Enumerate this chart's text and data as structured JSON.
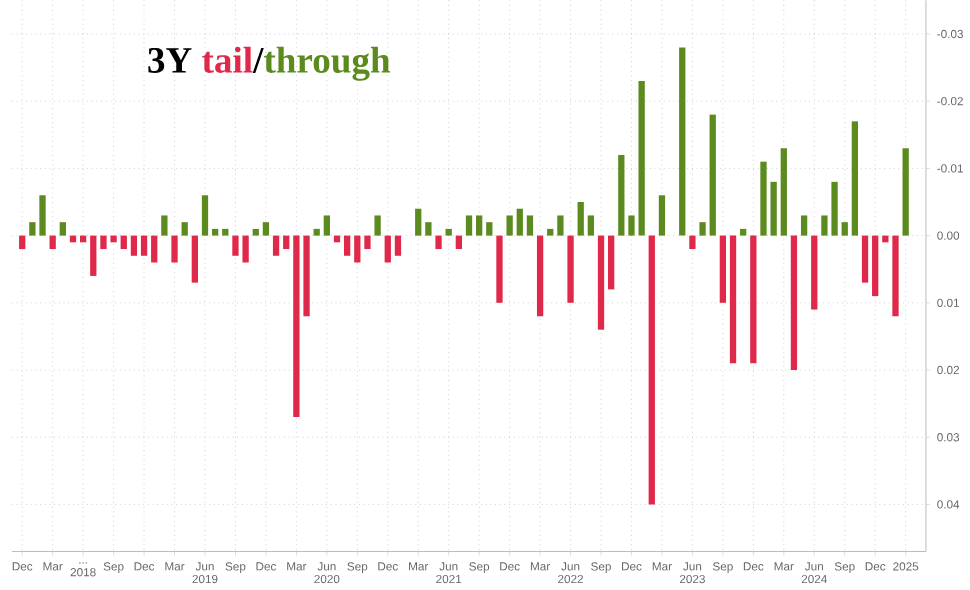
{
  "chart_data": {
    "type": "bar",
    "title": "3Y",
    "x": [
      "2017-12",
      "2018-01",
      "2018-02",
      "2018-03",
      "2018-04",
      "2018-05",
      "2018-06",
      "2018-07",
      "2018-08",
      "2018-09",
      "2018-10",
      "2018-11",
      "2018-12",
      "2019-01",
      "2019-02",
      "2019-03",
      "2019-04",
      "2019-05",
      "2019-06",
      "2019-07",
      "2019-08",
      "2019-09",
      "2019-10",
      "2019-11",
      "2019-12",
      "2020-01",
      "2020-02",
      "2020-03",
      "2020-04",
      "2020-05",
      "2020-06",
      "2020-07",
      "2020-08",
      "2020-09",
      "2020-10",
      "2020-11",
      "2020-12",
      "2021-01",
      "2021-02",
      "2021-03",
      "2021-04",
      "2021-05",
      "2021-06",
      "2021-07",
      "2021-08",
      "2021-09",
      "2021-10",
      "2021-11",
      "2021-12",
      "2022-01",
      "2022-02",
      "2022-03",
      "2022-04",
      "2022-05",
      "2022-06",
      "2022-07",
      "2022-08",
      "2022-09",
      "2022-10",
      "2022-11",
      "2022-12",
      "2023-01",
      "2023-02",
      "2023-03",
      "2023-04",
      "2023-05",
      "2023-06",
      "2023-07",
      "2023-08",
      "2023-09",
      "2023-10",
      "2023-11",
      "2023-12",
      "2024-01",
      "2024-02",
      "2024-03",
      "2024-04",
      "2024-05",
      "2024-06",
      "2024-07",
      "2024-08",
      "2024-09",
      "2024-10",
      "2024-11",
      "2024-12",
      "2025-01",
      "2025-02",
      "2025-03"
    ],
    "series": [
      {
        "name": "tail",
        "color": "#e0284a",
        "values": [
          0.002,
          null,
          null,
          0.002,
          null,
          0.001,
          0.001,
          0.006,
          0.002,
          0.001,
          0.002,
          0.003,
          0.003,
          0.004,
          null,
          0.004,
          null,
          0.007,
          null,
          null,
          null,
          0.003,
          0.004,
          null,
          null,
          0.003,
          0.002,
          0.027,
          0.012,
          null,
          null,
          0.001,
          0.003,
          0.004,
          0.002,
          null,
          0.004,
          0.003,
          null,
          null,
          null,
          0.002,
          null,
          0.002,
          null,
          null,
          null,
          0.01,
          null,
          null,
          null,
          0.012,
          null,
          null,
          0.01,
          null,
          null,
          0.014,
          0.008,
          null,
          null,
          null,
          0.04,
          null,
          null,
          null,
          0.002,
          null,
          null,
          0.01,
          0.019,
          null,
          0.019,
          null,
          null,
          null,
          0.02,
          null,
          0.011,
          null,
          null,
          null,
          null,
          0.007,
          0.009,
          0.001,
          0.012,
          null
        ]
      },
      {
        "name": "through",
        "color": "#5b8a1f",
        "values": [
          null,
          -0.002,
          -0.006,
          null,
          -0.002,
          null,
          null,
          null,
          null,
          null,
          null,
          null,
          null,
          null,
          -0.003,
          null,
          -0.002,
          null,
          -0.006,
          -0.001,
          -0.001,
          null,
          null,
          -0.001,
          -0.002,
          null,
          null,
          null,
          null,
          -0.001,
          -0.003,
          null,
          null,
          null,
          null,
          -0.003,
          null,
          null,
          null,
          -0.004,
          -0.002,
          null,
          -0.001,
          null,
          -0.003,
          -0.003,
          -0.002,
          null,
          -0.003,
          -0.004,
          -0.003,
          null,
          -0.001,
          -0.003,
          null,
          -0.005,
          -0.003,
          null,
          null,
          -0.012,
          -0.003,
          -0.023,
          null,
          -0.006,
          null,
          -0.028,
          null,
          -0.002,
          -0.018,
          null,
          null,
          -0.001,
          null,
          -0.011,
          -0.008,
          -0.013,
          null,
          -0.003,
          null,
          -0.003,
          -0.008,
          -0.002,
          -0.017,
          null,
          null,
          null,
          null,
          -0.013
        ]
      }
    ],
    "xlim": [
      "2017-11",
      "2025-05"
    ],
    "xticks": [
      {
        "value": "2017-12",
        "label": "Dec"
      },
      {
        "value": "2018-03",
        "label": "Mar"
      },
      {
        "value": "2018-06",
        "label": "... 2018"
      },
      {
        "value": "2018-09",
        "label": "Sep"
      },
      {
        "value": "2018-12",
        "label": "Dec"
      },
      {
        "value": "2019-03",
        "label": "Mar"
      },
      {
        "value": "2019-06",
        "label": "Jun 2019"
      },
      {
        "value": "2019-09",
        "label": "Sep"
      },
      {
        "value": "2019-12",
        "label": "Dec"
      },
      {
        "value": "2020-03",
        "label": "Mar"
      },
      {
        "value": "2020-06",
        "label": "Jun 2020"
      },
      {
        "value": "2020-09",
        "label": "Sep"
      },
      {
        "value": "2020-12",
        "label": "Dec"
      },
      {
        "value": "2021-03",
        "label": "Mar"
      },
      {
        "value": "2021-06",
        "label": "Jun 2021"
      },
      {
        "value": "2021-09",
        "label": "Sep"
      },
      {
        "value": "2021-12",
        "label": "Dec"
      },
      {
        "value": "2022-03",
        "label": "Mar"
      },
      {
        "value": "2022-06",
        "label": "Jun 2022"
      },
      {
        "value": "2022-09",
        "label": "Sep"
      },
      {
        "value": "2022-12",
        "label": "Dec"
      },
      {
        "value": "2023-03",
        "label": "Mar"
      },
      {
        "value": "2023-06",
        "label": "Jun 2023"
      },
      {
        "value": "2023-09",
        "label": "Sep"
      },
      {
        "value": "2023-12",
        "label": "Dec"
      },
      {
        "value": "2024-03",
        "label": "Mar"
      },
      {
        "value": "2024-06",
        "label": "Jun 2024"
      },
      {
        "value": "2024-09",
        "label": "Sep"
      },
      {
        "value": "2024-12",
        "label": "Dec"
      },
      {
        "value": "2025-03",
        "label": "2025"
      }
    ],
    "ylim": [
      0.047,
      -0.035
    ],
    "yticks": [
      {
        "value": -0.03,
        "label": "-0.03"
      },
      {
        "value": -0.02,
        "label": "-0.02"
      },
      {
        "value": -0.01,
        "label": "-0.01"
      },
      {
        "value": 0,
        "label": "0.00"
      },
      {
        "value": 0.01,
        "label": "0.01"
      },
      {
        "value": 0.02,
        "label": "0.02"
      },
      {
        "value": 0.03,
        "label": "0.03"
      },
      {
        "value": 0.04,
        "label": "0.04"
      }
    ],
    "annotations": [
      "/"
    ],
    "grid": true
  }
}
